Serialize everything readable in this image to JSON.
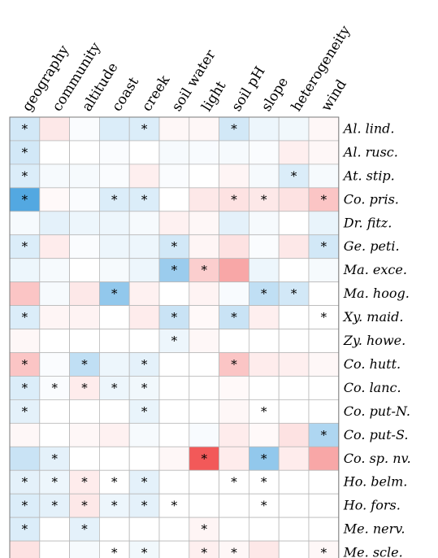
{
  "chart_data": {
    "type": "heatmap",
    "title": "",
    "xlabel": "",
    "ylabel": "",
    "columns": [
      "geography",
      "community",
      "altitude",
      "coast",
      "creek",
      "soil water",
      "light",
      "soil pH",
      "slope",
      "heterogeneity",
      "wind"
    ],
    "rows": [
      "Al. lind.",
      "Al. rusc.",
      "At. stip.",
      "Co. pris.",
      "Dr. fitz.",
      "Ge. peti.",
      "Ma. exce.",
      "Ma. hoog.",
      "Xy. maid.",
      "Zy. howe.",
      "Co. hutt.",
      "Co. lanc.",
      "Co. put-N.",
      "Co. put-S.",
      "Co. sp. nv.",
      "Ho. belm.",
      "Ho. fors.",
      "Me. nerv.",
      "Me. scle."
    ],
    "color_scale": {
      "range": [
        -1,
        1
      ],
      "negative_color": "#4aa3df",
      "zero_color": "#ffffff",
      "positive_color": "#f03c3c"
    },
    "values": [
      [
        -0.25,
        0.12,
        -0.03,
        -0.2,
        -0.2,
        0.04,
        0.04,
        -0.25,
        -0.1,
        -0.08,
        0.04
      ],
      [
        -0.25,
        0.0,
        0.0,
        -0.03,
        0.0,
        -0.05,
        -0.04,
        -0.05,
        -0.03,
        0.08,
        0.04
      ],
      [
        -0.2,
        -0.05,
        -0.05,
        -0.03,
        0.08,
        -0.03,
        0.0,
        0.05,
        -0.05,
        -0.2,
        -0.05
      ],
      [
        -0.95,
        0.03,
        -0.03,
        -0.2,
        -0.2,
        0.0,
        0.12,
        0.15,
        0.12,
        0.15,
        0.3
      ],
      [
        -0.05,
        -0.15,
        -0.1,
        -0.1,
        -0.05,
        0.07,
        0.04,
        -0.15,
        -0.05,
        0.0,
        -0.12
      ],
      [
        -0.2,
        0.1,
        -0.03,
        -0.1,
        -0.1,
        -0.25,
        0.05,
        0.15,
        -0.03,
        0.12,
        -0.25
      ],
      [
        -0.1,
        -0.05,
        0.0,
        -0.05,
        -0.1,
        -0.55,
        0.25,
        0.45,
        -0.1,
        0.0,
        -0.05
      ],
      [
        0.3,
        -0.05,
        0.12,
        -0.6,
        0.07,
        0.0,
        0.06,
        -0.04,
        -0.35,
        -0.25,
        0.0
      ],
      [
        -0.2,
        0.05,
        0.06,
        0.0,
        0.1,
        -0.3,
        0.03,
        -0.3,
        0.08,
        0.0,
        0.0
      ],
      [
        0.04,
        0.0,
        0.0,
        0.0,
        0.0,
        -0.1,
        0.04,
        0.0,
        0.0,
        0.0,
        0.0
      ],
      [
        0.3,
        -0.03,
        -0.35,
        -0.1,
        -0.15,
        0.0,
        0.0,
        0.3,
        0.1,
        0.08,
        0.04
      ],
      [
        -0.2,
        -0.03,
        0.1,
        -0.1,
        -0.08,
        0.0,
        0.0,
        0.03,
        0.0,
        0.0,
        0.0
      ],
      [
        -0.15,
        0.0,
        0.0,
        0.0,
        -0.12,
        0.0,
        0.0,
        0.04,
        0.0,
        0.0,
        0.0
      ],
      [
        0.04,
        0.0,
        0.04,
        0.07,
        -0.05,
        0.0,
        -0.04,
        0.1,
        0.03,
        0.15,
        -0.45
      ],
      [
        -0.3,
        -0.15,
        0.0,
        0.0,
        0.0,
        0.04,
        0.85,
        0.1,
        -0.6,
        0.1,
        0.45
      ],
      [
        -0.15,
        -0.1,
        0.1,
        0.0,
        -0.15,
        0.0,
        0.0,
        0.0,
        0.0,
        0.0,
        0.0
      ],
      [
        -0.2,
        -0.15,
        0.12,
        -0.1,
        -0.15,
        0.0,
        0.0,
        0.0,
        0.0,
        0.0,
        0.0
      ],
      [
        -0.2,
        0.0,
        -0.15,
        0.0,
        0.0,
        0.0,
        0.05,
        0.0,
        0.0,
        0.0,
        0.0
      ],
      [
        0.15,
        0.0,
        -0.05,
        0.0,
        -0.08,
        0.0,
        0.08,
        0.04,
        0.12,
        0.0,
        0.04
      ]
    ],
    "significant": [
      [
        true,
        false,
        false,
        false,
        true,
        false,
        false,
        true,
        false,
        false,
        false
      ],
      [
        true,
        false,
        false,
        false,
        false,
        false,
        false,
        false,
        false,
        false,
        false
      ],
      [
        true,
        false,
        false,
        false,
        false,
        false,
        false,
        false,
        false,
        true,
        false
      ],
      [
        true,
        false,
        false,
        true,
        true,
        false,
        false,
        true,
        true,
        false,
        true
      ],
      [
        false,
        false,
        false,
        false,
        false,
        false,
        false,
        false,
        false,
        false,
        false
      ],
      [
        true,
        false,
        false,
        false,
        false,
        true,
        false,
        false,
        false,
        false,
        true
      ],
      [
        false,
        false,
        false,
        false,
        false,
        true,
        true,
        false,
        false,
        false,
        false
      ],
      [
        false,
        false,
        false,
        true,
        false,
        false,
        false,
        false,
        true,
        true,
        false
      ],
      [
        true,
        false,
        false,
        false,
        false,
        true,
        false,
        true,
        false,
        false,
        true
      ],
      [
        false,
        false,
        false,
        false,
        false,
        true,
        false,
        false,
        false,
        false,
        false
      ],
      [
        true,
        false,
        true,
        false,
        true,
        false,
        false,
        true,
        false,
        false,
        false
      ],
      [
        true,
        true,
        true,
        true,
        true,
        false,
        false,
        false,
        false,
        false,
        false
      ],
      [
        true,
        false,
        false,
        false,
        true,
        false,
        false,
        false,
        true,
        false,
        false
      ],
      [
        false,
        false,
        false,
        false,
        false,
        false,
        false,
        false,
        false,
        false,
        true
      ],
      [
        false,
        true,
        false,
        false,
        false,
        false,
        true,
        false,
        true,
        false,
        false
      ],
      [
        true,
        true,
        true,
        true,
        true,
        false,
        false,
        true,
        true,
        false,
        false
      ],
      [
        true,
        true,
        true,
        true,
        true,
        true,
        false,
        false,
        true,
        false,
        false
      ],
      [
        true,
        false,
        true,
        false,
        false,
        false,
        true,
        false,
        false,
        false,
        false
      ],
      [
        false,
        false,
        false,
        true,
        true,
        false,
        true,
        true,
        false,
        false,
        true
      ]
    ],
    "significance_marker": "*",
    "grid": true,
    "legend": "none"
  }
}
